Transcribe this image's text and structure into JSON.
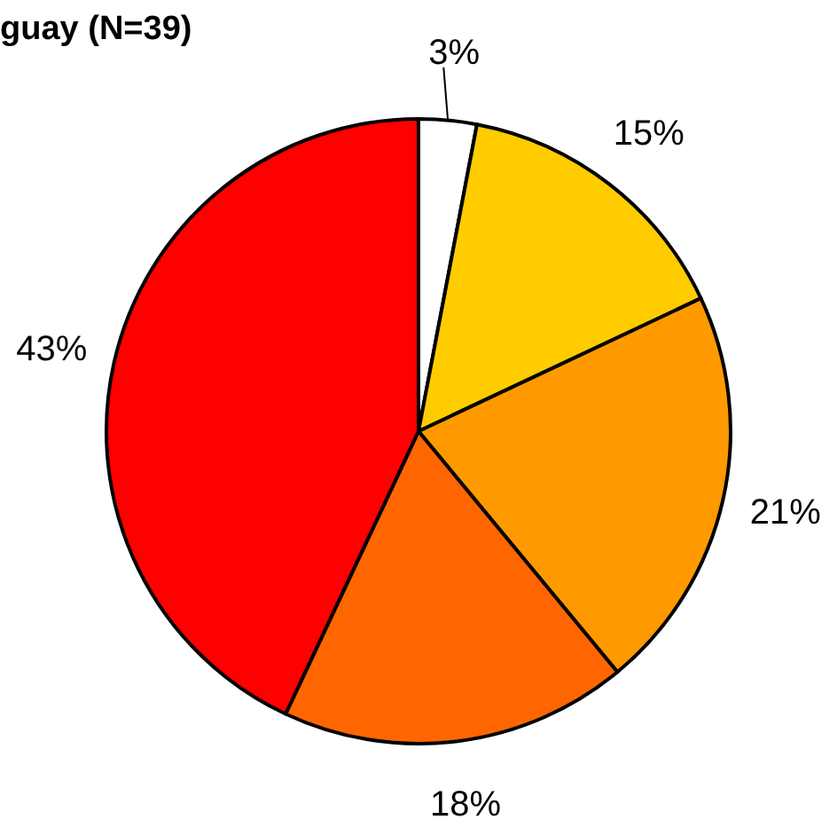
{
  "chart_data": {
    "type": "pie",
    "title": "guay (N=39)",
    "categories": [
      null,
      null,
      null,
      null,
      null
    ],
    "values": [
      3,
      15,
      21,
      18,
      43
    ],
    "value_labels": [
      "3%",
      "15%",
      "21%",
      "18%",
      "43%"
    ],
    "colors": [
      "#ffffff",
      "#ffcc00",
      "#ff9900",
      "#ff6600",
      "#ff0000"
    ]
  }
}
